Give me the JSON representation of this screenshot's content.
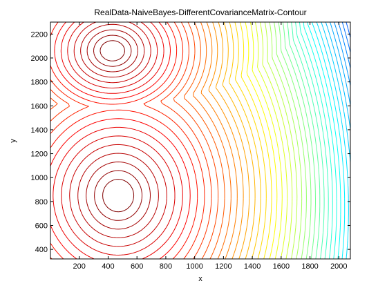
{
  "chart_data": {
    "type": "contour",
    "title": "RealData-NaiveBayes-DifferentCovarianceMatrix-Contour",
    "xlabel": "x",
    "ylabel": "y",
    "xlim": [
      0,
      2080
    ],
    "ylim": [
      320,
      2300
    ],
    "xticks": [
      200,
      400,
      600,
      800,
      1000,
      1200,
      1400,
      1600,
      1800,
      2000
    ],
    "yticks": [
      400,
      600,
      800,
      1000,
      1200,
      1400,
      1600,
      1800,
      2000,
      2200
    ],
    "grid": false,
    "legend": "none",
    "colormap": "jet",
    "level_count": 45,
    "centers": [
      {
        "x": 430,
        "y": 2060
      },
      {
        "x": 470,
        "y": 850
      }
    ]
  }
}
